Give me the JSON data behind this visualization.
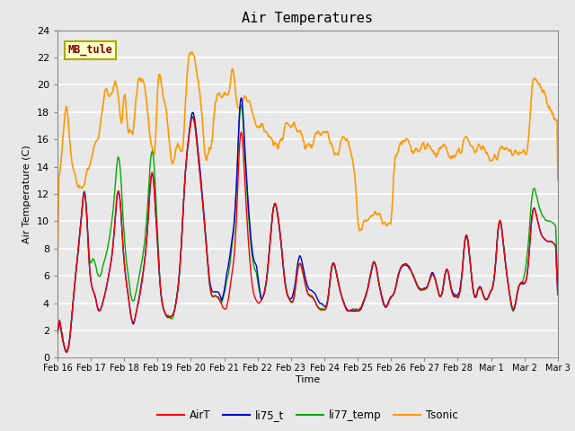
{
  "title": "Air Temperatures",
  "xlabel": "Time",
  "ylabel": "Air Temperature (C)",
  "ylim": [
    0,
    24
  ],
  "annotation_text": "MB_tule",
  "series_colors": {
    "AirT": "#ff0000",
    "li75_t": "#0000cc",
    "li77_temp": "#00aa00",
    "Tsonic": "#ff9900"
  },
  "series_linewidths": {
    "AirT": 1.0,
    "li75_t": 1.0,
    "li77_temp": 1.0,
    "Tsonic": 1.2
  },
  "bg_color": "#e8e8e8",
  "plot_bg_color": "#e8e8e8",
  "grid_color": "#ffffff",
  "tick_labels": [
    "Feb 16",
    "Feb 17",
    "Feb 18",
    "Feb 19",
    "Feb 20",
    "Feb 21",
    "Feb 22",
    "Feb 23",
    "Feb 24",
    "Feb 25",
    "Feb 26",
    "Feb 27",
    "Feb 28",
    "Mar 1",
    "Mar 2",
    "Mar 3"
  ],
  "tick_positions": [
    0,
    24,
    48,
    72,
    96,
    120,
    144,
    168,
    192,
    216,
    240,
    264,
    288,
    312,
    336,
    360
  ],
  "num_points": 720
}
